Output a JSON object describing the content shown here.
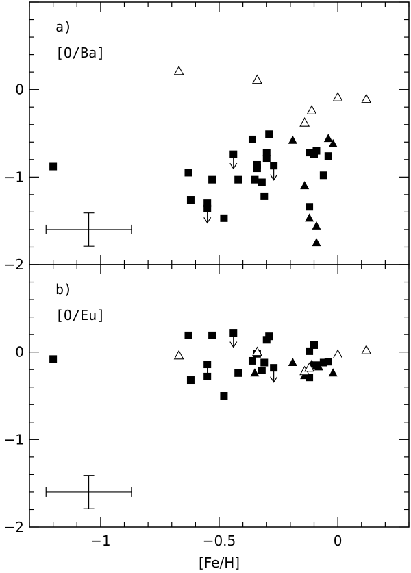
{
  "chart_data": [
    {
      "type": "scatter",
      "panel_label": "a)",
      "ylabel": "[O/Ba]",
      "xlim": [
        -1.3,
        0.3
      ],
      "ylim": [
        -2,
        1
      ],
      "x_ticks": [
        "-1",
        "-0.5",
        "0"
      ],
      "y_ticks": [
        "-2",
        "-1",
        "0"
      ],
      "grid": false,
      "error_bar": {
        "x": -1.05,
        "y": -1.6,
        "xerr": 0.18,
        "yerr": 0.19
      },
      "series": [
        {
          "marker": "filled-square",
          "points": [
            {
              "x": -1.2,
              "y": -0.88
            },
            {
              "x": -0.63,
              "y": -0.95
            },
            {
              "x": -0.62,
              "y": -1.26
            },
            {
              "x": -0.55,
              "y": -1.3
            },
            {
              "x": -0.55,
              "y": -1.36,
              "upper_limit": true
            },
            {
              "x": -0.53,
              "y": -1.03
            },
            {
              "x": -0.48,
              "y": -1.47
            },
            {
              "x": -0.44,
              "y": -0.74,
              "upper_limit": true
            },
            {
              "x": -0.42,
              "y": -1.03
            },
            {
              "x": -0.36,
              "y": -0.57
            },
            {
              "x": -0.35,
              "y": -1.03
            },
            {
              "x": -0.34,
              "y": -0.9
            },
            {
              "x": -0.34,
              "y": -0.86
            },
            {
              "x": -0.32,
              "y": -1.06
            },
            {
              "x": -0.31,
              "y": -1.22
            },
            {
              "x": -0.3,
              "y": -0.72
            },
            {
              "x": -0.3,
              "y": -0.79
            },
            {
              "x": -0.29,
              "y": -0.51
            },
            {
              "x": -0.27,
              "y": -0.87,
              "upper_limit": true
            },
            {
              "x": -0.12,
              "y": -1.34
            },
            {
              "x": -0.12,
              "y": -0.72
            },
            {
              "x": -0.1,
              "y": -0.74
            },
            {
              "x": -0.09,
              "y": -0.7
            },
            {
              "x": -0.06,
              "y": -0.98
            },
            {
              "x": -0.04,
              "y": -0.76
            }
          ]
        },
        {
          "marker": "filled-triangle",
          "points": [
            {
              "x": -0.19,
              "y": -0.58
            },
            {
              "x": -0.14,
              "y": -1.1
            },
            {
              "x": -0.12,
              "y": -1.47
            },
            {
              "x": -0.09,
              "y": -1.56
            },
            {
              "x": -0.09,
              "y": -1.75
            },
            {
              "x": -0.04,
              "y": -0.56
            },
            {
              "x": -0.02,
              "y": -0.62
            }
          ]
        },
        {
          "marker": "open-triangle",
          "points": [
            {
              "x": -0.67,
              "y": 0.21
            },
            {
              "x": -0.34,
              "y": 0.11
            },
            {
              "x": -0.14,
              "y": -0.38
            },
            {
              "x": -0.11,
              "y": -0.24
            },
            {
              "x": 0.0,
              "y": -0.09
            },
            {
              "x": 0.12,
              "y": -0.11
            }
          ]
        }
      ]
    },
    {
      "type": "scatter",
      "panel_label": "b)",
      "ylabel": "[O/Eu]",
      "xlabel": "[Fe/H]",
      "xlim": [
        -1.3,
        0.3
      ],
      "ylim": [
        -2,
        1
      ],
      "x_ticks": [
        "-1",
        "-0.5",
        "0"
      ],
      "y_ticks": [
        "-2",
        "-1",
        "0"
      ],
      "grid": false,
      "error_bar": {
        "x": -1.05,
        "y": -1.6,
        "xerr": 0.18,
        "yerr": 0.19
      },
      "series": [
        {
          "marker": "filled-square",
          "points": [
            {
              "x": -1.2,
              "y": -0.08
            },
            {
              "x": -0.63,
              "y": 0.19
            },
            {
              "x": -0.62,
              "y": -0.32
            },
            {
              "x": -0.55,
              "y": -0.14,
              "upper_limit": true
            },
            {
              "x": -0.55,
              "y": -0.28
            },
            {
              "x": -0.53,
              "y": 0.19
            },
            {
              "x": -0.48,
              "y": -0.5
            },
            {
              "x": -0.44,
              "y": 0.22,
              "upper_limit": true
            },
            {
              "x": -0.42,
              "y": -0.24
            },
            {
              "x": -0.36,
              "y": -0.1
            },
            {
              "x": -0.34,
              "y": -0.02
            },
            {
              "x": -0.32,
              "y": -0.21
            },
            {
              "x": -0.31,
              "y": -0.12
            },
            {
              "x": -0.3,
              "y": 0.14
            },
            {
              "x": -0.29,
              "y": 0.18
            },
            {
              "x": -0.27,
              "y": -0.18,
              "upper_limit": true
            },
            {
              "x": -0.12,
              "y": 0.01
            },
            {
              "x": -0.12,
              "y": -0.29
            },
            {
              "x": -0.1,
              "y": 0.08
            },
            {
              "x": -0.09,
              "y": -0.15
            },
            {
              "x": -0.06,
              "y": -0.12
            },
            {
              "x": -0.04,
              "y": -0.11
            }
          ]
        },
        {
          "marker": "filled-triangle",
          "points": [
            {
              "x": -0.35,
              "y": -0.24
            },
            {
              "x": -0.19,
              "y": -0.12
            },
            {
              "x": -0.14,
              "y": -0.27
            },
            {
              "x": -0.11,
              "y": -0.14
            },
            {
              "x": -0.08,
              "y": -0.17
            },
            {
              "x": -0.02,
              "y": -0.24
            }
          ]
        },
        {
          "marker": "open-triangle",
          "points": [
            {
              "x": -0.67,
              "y": -0.04
            },
            {
              "x": -0.34,
              "y": 0.0
            },
            {
              "x": -0.14,
              "y": -0.22
            },
            {
              "x": -0.12,
              "y": -0.18
            },
            {
              "x": 0.0,
              "y": -0.03
            },
            {
              "x": 0.12,
              "y": 0.02
            }
          ]
        }
      ]
    }
  ]
}
